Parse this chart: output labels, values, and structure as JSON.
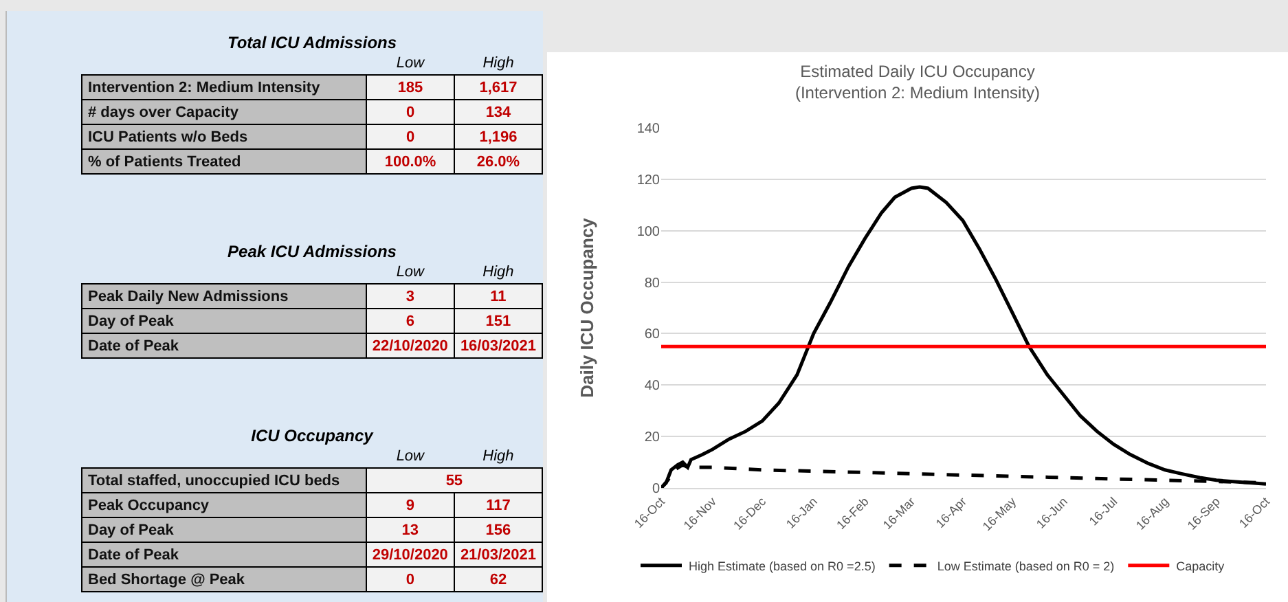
{
  "chart_data": [
    {
      "type": "other",
      "title": "Total ICU Admissions",
      "categories": [
        "Low",
        "High"
      ],
      "y_categories": [
        "Intervention 2: Medium Intensity",
        "# days over Capacity",
        "ICU Patients w/o Beds",
        "% of Patients Treated"
      ],
      "cell_labels": [
        [
          "185",
          "1,617"
        ],
        [
          "0",
          "134"
        ],
        [
          "0",
          "1,196"
        ],
        [
          "100.0%",
          "26.0%"
        ]
      ]
    },
    {
      "type": "other",
      "title": "Peak ICU Admissions",
      "categories": [
        "Low",
        "High"
      ],
      "y_categories": [
        "Peak Daily New Admissions",
        "Day of Peak",
        "Date of Peak"
      ],
      "cell_labels": [
        [
          "3",
          "11"
        ],
        [
          "6",
          "151"
        ],
        [
          "22/10/2020",
          "16/03/2021"
        ]
      ]
    },
    {
      "type": "other",
      "title": "ICU Occupancy",
      "categories": [
        "Low",
        "High"
      ],
      "y_categories": [
        "Total staffed, unoccupied ICU beds",
        "Peak Occupancy",
        "Day of Peak",
        "Date of Peak",
        "Bed Shortage @ Peak"
      ],
      "cell_labels": [
        [
          "55"
        ],
        [
          "9",
          "117"
        ],
        [
          "13",
          "156"
        ],
        [
          "29/10/2020",
          "21/03/2021"
        ],
        [
          "0",
          "62"
        ]
      ]
    },
    {
      "type": "line",
      "title": "Estimated Daily ICU Occupancy\n(Intervention 2: Medium Intensity)",
      "ylabel": "Daily ICU Occupancy",
      "grid": "y",
      "legend": "bottom",
      "marker": "none",
      "xlim": [
        "2020-10-16",
        "2021-10-16"
      ],
      "xticks": [
        {
          "value": "2020-10-16",
          "label": "16-Oct"
        },
        {
          "value": "2020-11-16",
          "label": "16-Nov"
        },
        {
          "value": "2020-12-16",
          "label": "16-Dec"
        },
        {
          "value": "2021-01-16",
          "label": "16-Jan"
        },
        {
          "value": "2021-02-16",
          "label": "16-Feb"
        },
        {
          "value": "2021-03-16",
          "label": "16-Mar"
        },
        {
          "value": "2021-04-16",
          "label": "16-Apr"
        },
        {
          "value": "2021-05-16",
          "label": "16-May"
        },
        {
          "value": "2021-06-16",
          "label": "16-Jun"
        },
        {
          "value": "2021-07-16",
          "label": "16-Jul"
        },
        {
          "value": "2021-08-16",
          "label": "16-Aug"
        },
        {
          "value": "2021-09-16",
          "label": "16-Sep"
        },
        {
          "value": "2021-10-16",
          "label": "16-Oct"
        }
      ],
      "ylim": [
        0,
        140
      ],
      "yticks": [
        0,
        20,
        40,
        60,
        80,
        100,
        120,
        140
      ],
      "series": [
        {
          "name": "High Estimate (based on R0 =2.5)",
          "color": "#000000",
          "line_style": "solid",
          "x": [
            "2020-10-16",
            "2020-10-19",
            "2020-10-22",
            "2020-10-26",
            "2020-10-29",
            "2020-11-01",
            "2020-11-03",
            "2020-11-10",
            "2020-11-16",
            "2020-11-26",
            "2020-12-06",
            "2020-12-16",
            "2020-12-26",
            "2021-01-06",
            "2021-01-16",
            "2021-01-26",
            "2021-02-06",
            "2021-02-16",
            "2021-02-26",
            "2021-03-06",
            "2021-03-16",
            "2021-03-21",
            "2021-03-26",
            "2021-04-06",
            "2021-04-16",
            "2021-04-26",
            "2021-05-06",
            "2021-05-16",
            "2021-05-26",
            "2021-06-06",
            "2021-06-16",
            "2021-06-26",
            "2021-07-06",
            "2021-07-16",
            "2021-07-26",
            "2021-08-06",
            "2021-08-16",
            "2021-08-26",
            "2021-09-06",
            "2021-09-16",
            "2021-09-26",
            "2021-10-06",
            "2021-10-16"
          ],
          "values": [
            0,
            2,
            7,
            9,
            10,
            8,
            11,
            13,
            15,
            19,
            22,
            26,
            33,
            44,
            60,
            72,
            86,
            97,
            107,
            113,
            116.5,
            117,
            116.5,
            111,
            104,
            93,
            81,
            68,
            55,
            44,
            36,
            28,
            22,
            17,
            13,
            9.5,
            7,
            5.5,
            4,
            3,
            2.5,
            2,
            1.5
          ]
        },
        {
          "name": "Low Estimate (based on R0 = 2)",
          "color": "#000000",
          "line_style": "dashed",
          "x": [
            "2020-10-16",
            "2020-10-20",
            "2020-10-24",
            "2020-10-29",
            "2020-11-01",
            "2020-11-16",
            "2020-12-01",
            "2020-12-16",
            "2021-01-16",
            "2021-02-16",
            "2021-03-16",
            "2021-04-16",
            "2021-05-16",
            "2021-06-16",
            "2021-07-16",
            "2021-08-16",
            "2021-09-16",
            "2021-10-16"
          ],
          "values": [
            0,
            3,
            7,
            9,
            8,
            8,
            7.5,
            7,
            6.5,
            6,
            5.5,
            5,
            4.5,
            4,
            3.5,
            3,
            2.5,
            2
          ]
        }
      ],
      "ref_lines": [
        {
          "axis": "y",
          "value": 55,
          "label": "Capacity",
          "color": "#ff0000"
        }
      ]
    }
  ]
}
